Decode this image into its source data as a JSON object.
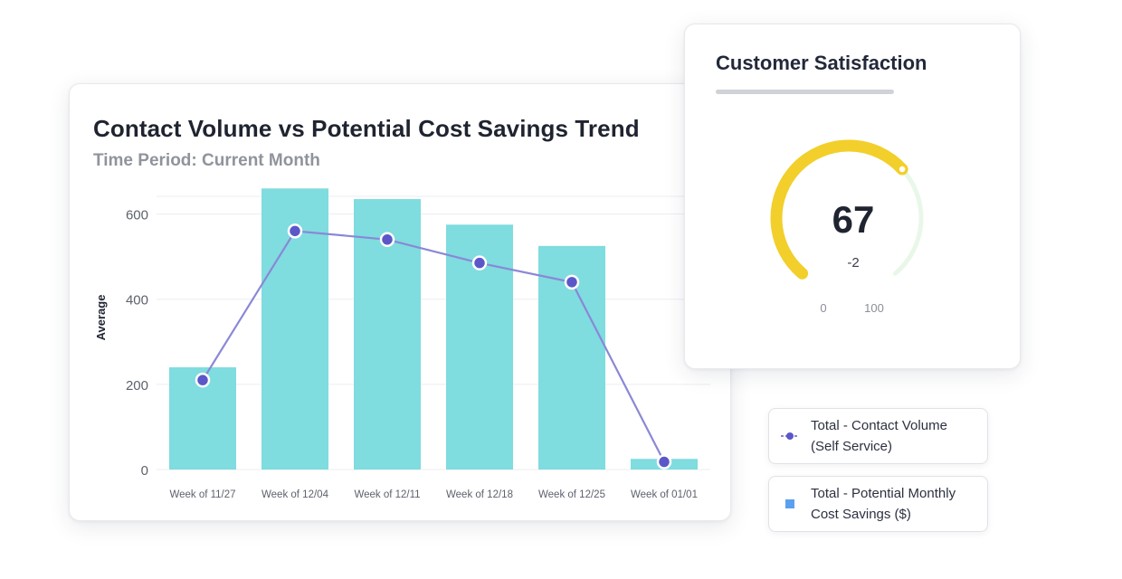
{
  "chart_card": {
    "title": "Contact Volume vs Potential Cost Savings Trend",
    "subtitle": "Time Period: Current Month"
  },
  "colors": {
    "bar": "#7fdcdf",
    "line": "#8a88d6",
    "point": "#5b57c8",
    "grid": "#eceef1",
    "gauge_value": "#f2cf2a",
    "gauge_track": "#e9f7e9",
    "legend_bar_swatch": "#5aa0f0"
  },
  "chart_data": {
    "type": "bar",
    "categories": [
      "Week of 11/27",
      "Week of 12/04",
      "Week of 12/11",
      "Week of 12/18",
      "Week of 12/25",
      "Week of 01/01"
    ],
    "ylabel": "Average",
    "ylim": [
      0,
      650
    ],
    "yticks": [
      0,
      200,
      400,
      600
    ],
    "grid": true,
    "series": [
      {
        "name": "Total - Potential Monthly Cost Savings ($)",
        "type": "bar",
        "values": [
          240,
          660,
          635,
          575,
          525,
          25
        ]
      },
      {
        "name": "Total - Contact Volume (Self Service)",
        "type": "line",
        "values": [
          210,
          560,
          540,
          485,
          440,
          18
        ]
      }
    ]
  },
  "csat": {
    "title": "Customer Satisfaction",
    "value": "67",
    "delta": "-2",
    "min_label": "0",
    "max_label": "100",
    "score": 67,
    "min": 0,
    "max": 100
  },
  "legend": {
    "line_label_1": "Total - Contact Volume",
    "line_label_2": "(Self Service)",
    "bar_label_1": "Total - Potential Monthly",
    "bar_label_2": "Cost Savings ($)",
    "line_icon": "line-point-icon",
    "bar_icon": "square-icon"
  }
}
